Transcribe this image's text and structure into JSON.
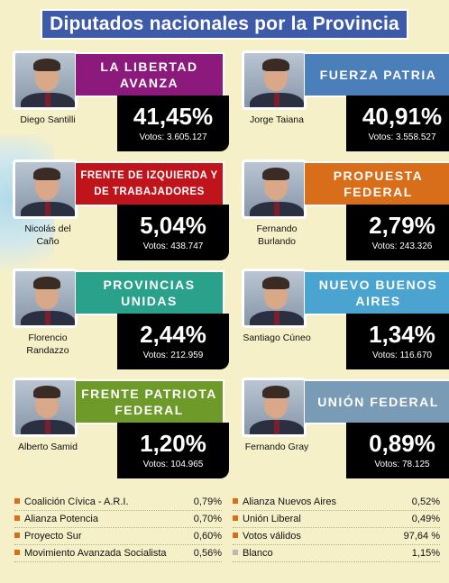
{
  "title": "Diputados nacionales por la Provincia",
  "colors": {
    "background": "#f6f0c9",
    "title_bg": "#3d5ba8",
    "result_bg": "#000000",
    "bullet_orange": "#d86d1a",
    "bullet_gray": "#b8b8b8"
  },
  "candidates": [
    {
      "name": "Diego Santilli",
      "party": "LA LIBERTAD AVANZA",
      "pct": "41,45%",
      "votes": "Votos: 3.605.127",
      "color": "#8c1a7d",
      "side": "left"
    },
    {
      "name": "Jorge Taiana",
      "party": "FUERZA PATRIA",
      "pct": "40,91%",
      "votes": "Votos: 3.558.527",
      "color": "#4b7fba",
      "side": "right"
    },
    {
      "name": "Nicolás del Caño",
      "party": "FRENTE DE IZQUIERDA Y DE TRABAJADORES",
      "pct": "5,04%",
      "votes": "Votos: 438.747",
      "color": "#c0141c",
      "side": "left"
    },
    {
      "name": "Fernando Burlando",
      "party": "PROPUESTA FEDERAL",
      "pct": "2,79%",
      "votes": "Votos: 243.326",
      "color": "#d86d1a",
      "side": "right"
    },
    {
      "name": "Florencio Randazzo",
      "party": "PROVINCIAS UNIDAS",
      "pct": "2,44%",
      "votes": "Votos: 212.959",
      "color": "#2aa18a",
      "side": "left"
    },
    {
      "name": "Santiago Cúneo",
      "party": "NUEVO BUENOS AIRES",
      "pct": "1,34%",
      "votes": "Votos: 116.670",
      "color": "#4ba3cf",
      "side": "right"
    },
    {
      "name": "Alberto Samid",
      "party": "FRENTE PATRIOTA FEDERAL",
      "pct": "1,20%",
      "votes": "Votos: 104.965",
      "color": "#6e9a2a",
      "side": "left"
    },
    {
      "name": "Fernando Gray",
      "party": "UNIÓN FEDERAL",
      "pct": "0,89%",
      "votes": "Votos: 78.125",
      "color": "#7a9bb6",
      "side": "right"
    }
  ],
  "others_left": [
    {
      "label": "Coalición Cívica - A.R.I.",
      "value": "0,79%"
    },
    {
      "label": "Alianza Potencia",
      "value": "0,70%"
    },
    {
      "label": "Proyecto Sur",
      "value": "0,60%"
    },
    {
      "label": "Movimiento Avanzada Socialista",
      "value": "0,56%"
    }
  ],
  "others_right": [
    {
      "label": "Alianza Nuevos Aires",
      "value": "0,52%"
    },
    {
      "label": "Unión Liberal",
      "value": "0,49%"
    },
    {
      "label": "Votos válidos",
      "value": "97,64 %"
    },
    {
      "label": "Blanco",
      "value": "1,15%"
    }
  ]
}
